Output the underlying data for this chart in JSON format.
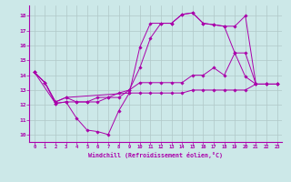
{
  "background_color": "#cce8e8",
  "grid_color": "#b0c8c8",
  "line_color": "#aa00aa",
  "xlim": [
    -0.5,
    23.5
  ],
  "ylim": [
    9.5,
    18.7
  ],
  "yticks": [
    10,
    11,
    12,
    13,
    14,
    15,
    16,
    17,
    18
  ],
  "xticks": [
    0,
    1,
    2,
    3,
    4,
    5,
    6,
    7,
    8,
    9,
    10,
    11,
    12,
    13,
    14,
    15,
    16,
    17,
    18,
    19,
    20,
    21,
    22,
    23
  ],
  "xlabel": "Windchill (Refroidissement éolien,°C)",
  "lines": [
    {
      "x": [
        0,
        1,
        2,
        3,
        9,
        10,
        11,
        12,
        13,
        14,
        15,
        16,
        17,
        18,
        19,
        20,
        21,
        22,
        23
      ],
      "y": [
        14.2,
        13.5,
        12.2,
        12.5,
        12.8,
        15.9,
        17.5,
        17.5,
        17.5,
        18.1,
        18.2,
        17.5,
        17.4,
        17.3,
        17.3,
        18.0,
        13.4,
        13.4,
        13.4
      ]
    },
    {
      "x": [
        0,
        1,
        2,
        3,
        4,
        5,
        6,
        7,
        8,
        9,
        10,
        11,
        12,
        13,
        14,
        15,
        16,
        17,
        18,
        19,
        20,
        21,
        22,
        23
      ],
      "y": [
        14.2,
        13.5,
        12.1,
        12.2,
        11.1,
        10.3,
        10.2,
        10.0,
        11.6,
        12.8,
        12.8,
        12.8,
        12.8,
        12.8,
        12.8,
        13.0,
        13.0,
        13.0,
        13.0,
        13.0,
        13.0,
        13.4,
        13.4,
        13.4
      ]
    },
    {
      "x": [
        0,
        2,
        3,
        4,
        5,
        6,
        7,
        8,
        9,
        10,
        11,
        12,
        13,
        14,
        15,
        16,
        17,
        18,
        19,
        20,
        21,
        22,
        23
      ],
      "y": [
        14.2,
        12.1,
        12.2,
        12.2,
        12.2,
        12.2,
        12.5,
        12.8,
        13.0,
        13.5,
        13.5,
        13.5,
        13.5,
        13.5,
        14.0,
        14.0,
        14.5,
        14.0,
        15.5,
        15.5,
        13.4,
        13.4,
        13.4
      ]
    },
    {
      "x": [
        0,
        1,
        2,
        3,
        4,
        5,
        6,
        7,
        8,
        9,
        10,
        11,
        12,
        13,
        14,
        15,
        16,
        17,
        18,
        19,
        20,
        21,
        22,
        23
      ],
      "y": [
        14.2,
        13.5,
        12.2,
        12.5,
        12.2,
        12.2,
        12.5,
        12.5,
        12.5,
        13.0,
        14.5,
        16.5,
        17.5,
        17.5,
        18.1,
        18.2,
        17.5,
        17.4,
        17.3,
        15.5,
        13.9,
        13.4,
        13.4,
        13.4
      ]
    }
  ]
}
